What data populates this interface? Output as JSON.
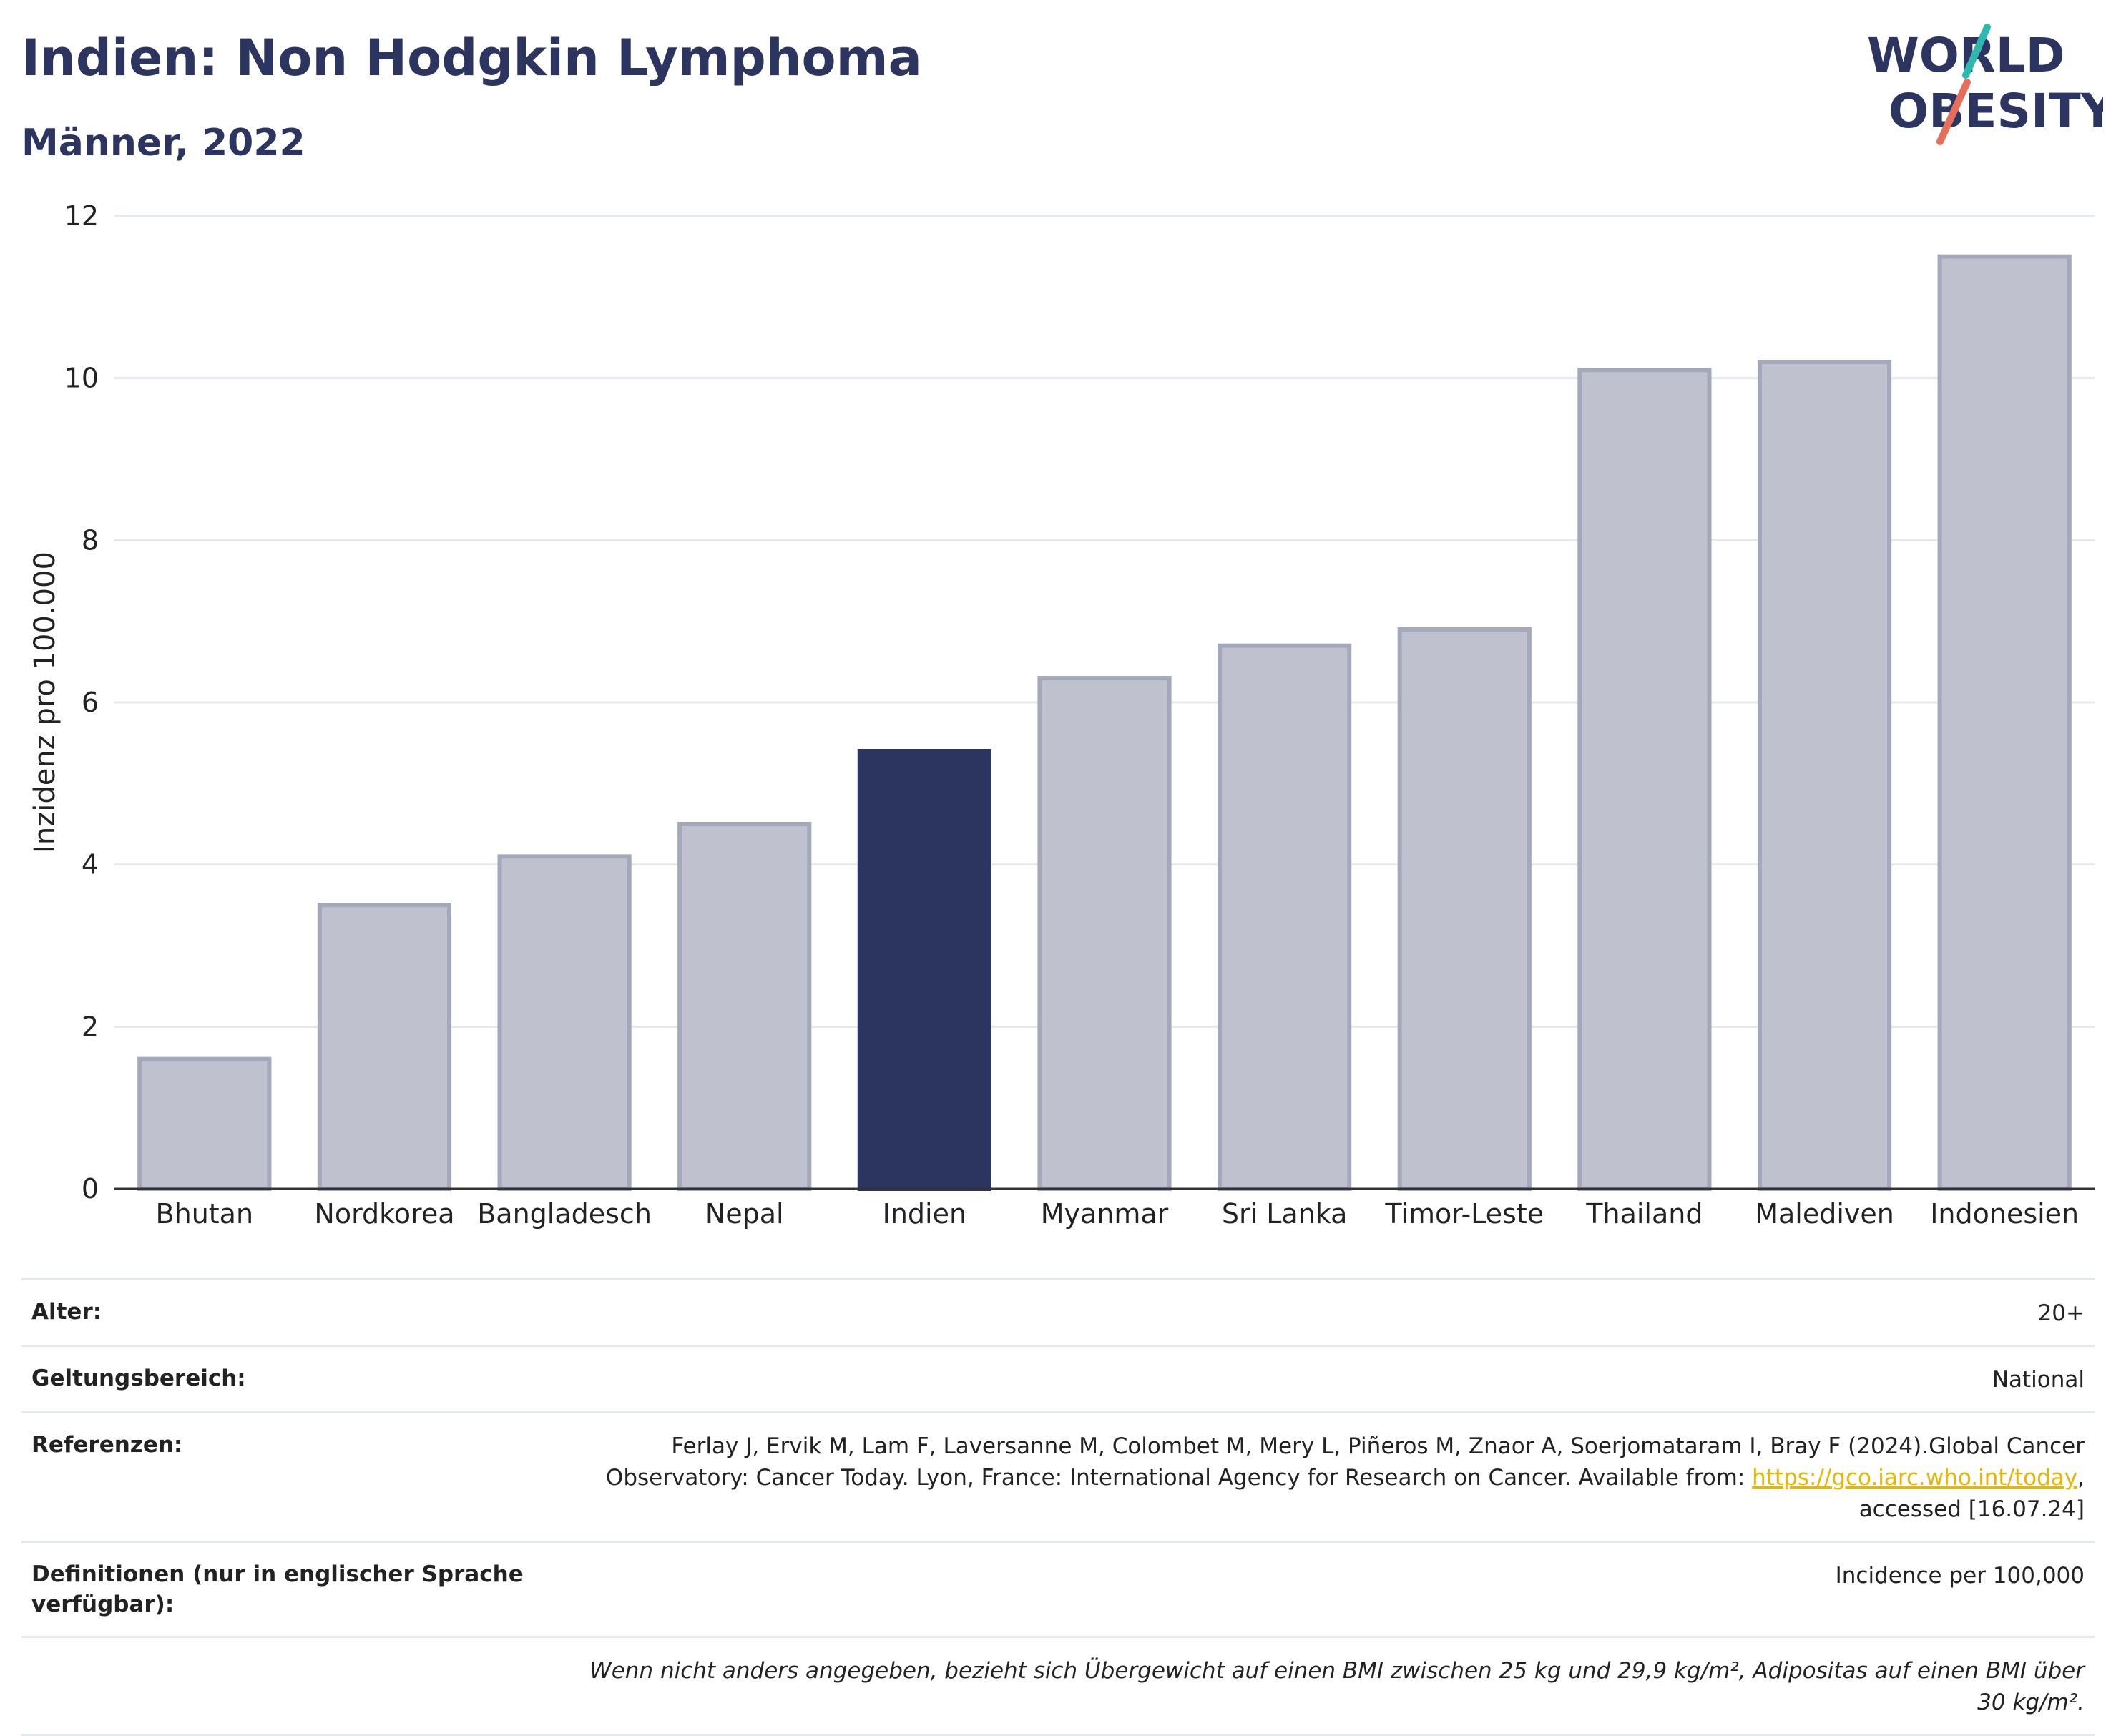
{
  "header": {
    "title": "Indien: Non Hodgkin Lymphoma",
    "subtitle": "Männer, 2022",
    "logo_line1": "WORLD",
    "logo_line2": "OBESITY"
  },
  "colors": {
    "highlight_bar": "#2b3560",
    "other_bar_fill": "#bfc2ce",
    "other_bar_stroke": "#a3a8bb",
    "grid": "#e6e8ef",
    "text_dark": "#2b3560",
    "logo_teal": "#2fb8b0",
    "logo_coral": "#e76f5a",
    "link": "#e8b500"
  },
  "chart_data": {
    "type": "bar",
    "title": "Indien: Non Hodgkin Lymphoma",
    "subtitle": "Männer, 2022",
    "xlabel": "",
    "ylabel": "Inzidenz pro 100.000",
    "ylim": [
      0,
      12
    ],
    "yticks": [
      0,
      2,
      4,
      6,
      8,
      10,
      12
    ],
    "grid": true,
    "highlight": "Indien",
    "categories": [
      "Bhutan",
      "Nordkorea",
      "Bangladesch",
      "Nepal",
      "Indien",
      "Myanmar",
      "Sri Lanka",
      "Timor-Leste",
      "Thailand",
      "Malediven",
      "Indonesien"
    ],
    "values": [
      1.6,
      3.5,
      4.1,
      4.5,
      5.4,
      6.3,
      6.7,
      6.9,
      10.1,
      10.2,
      11.5
    ]
  },
  "meta": {
    "alter_label": "Alter:",
    "alter_value": "20+",
    "scope_label": "Geltungsbereich:",
    "scope_value": "National",
    "ref_label": "Referenzen:",
    "ref_text_1": "Ferlay J, Ervik M, Lam F, Laversanne M, Colombet M, Mery L, Piñeros M, Znaor A, Soerjomataram I, Bray F (2024).Global Cancer Observatory: Cancer Today. Lyon, France: International Agency for Research on Cancer. Available from: ",
    "ref_link": "https://gco.iarc.who.int/today",
    "ref_text_2": ", accessed [16.07.24]",
    "def_label": "Definitionen (nur in englischer Sprache verfügbar):",
    "def_value": "Incidence per 100,000",
    "note": "Wenn nicht anders angegeben, bezieht sich Übergewicht auf einen BMI zwischen 25 kg und 29,9 kg/m², Adipositas auf einen BMI über 30 kg/m²."
  }
}
